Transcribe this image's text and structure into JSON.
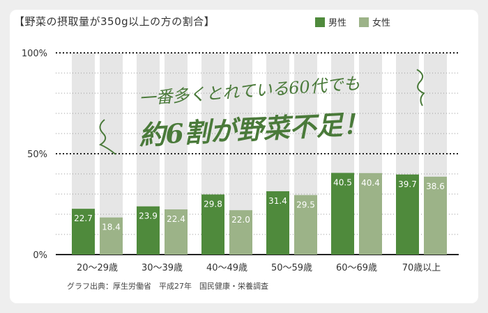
{
  "header": {
    "title": "【野菜の摂取量が350g以上の方の割合】"
  },
  "legend": [
    {
      "label": "男性",
      "color": "#4f8a3c"
    },
    {
      "label": "女性",
      "color": "#9cb388"
    }
  ],
  "annotation": {
    "line1": "一番多くとれている60代でも",
    "line2": "約6割が野菜不足！"
  },
  "source": "グラフ出典：厚生労働省　平成27年　国民健康・栄養調査",
  "chart_data": {
    "type": "bar",
    "title": "【野菜の摂取量が350g以上の方の割合】",
    "categories": [
      "20～29歳",
      "30～39歳",
      "40～49歳",
      "50～59歳",
      "60～69歳",
      "70歳以上"
    ],
    "series": [
      {
        "name": "男性",
        "values": [
          22.7,
          23.9,
          29.8,
          31.4,
          40.5,
          39.7
        ],
        "color": "#4f8a3c"
      },
      {
        "name": "女性",
        "values": [
          18.4,
          22.4,
          22.0,
          29.5,
          40.4,
          38.6
        ],
        "color": "#9cb388"
      }
    ],
    "ylim": [
      0,
      100
    ],
    "yticks": [
      {
        "value": 0,
        "label": "0%"
      },
      {
        "value": 50,
        "label": "50%"
      },
      {
        "value": 100,
        "label": "100%"
      }
    ],
    "background_column_color": "#e6e6e6",
    "grid": true,
    "legend_position": "top-right"
  }
}
